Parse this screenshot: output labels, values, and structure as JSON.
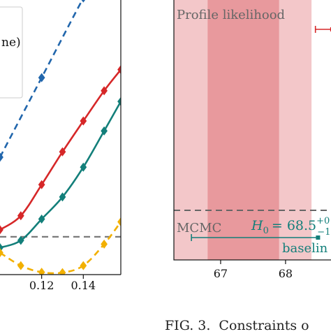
{
  "chart_data": [
    {
      "type": "line",
      "title": "",
      "xlabel": "",
      "ylabel": "",
      "xlim": [
        0.1,
        0.158
      ],
      "ylim": [
        -1.9,
        11.9
      ],
      "x_ticks": [
        {
          "value": 0.12,
          "label": "0.12"
        },
        {
          "value": 0.14,
          "label": "0.14"
        }
      ],
      "legend": {
        "placement": "upper-left (clipped)",
        "visible_text": [
          "ne)"
        ]
      },
      "reference_line": {
        "y": 0.0,
        "style": "dashed",
        "color": "#7a7a7a"
      },
      "series": [
        {
          "color": "#2166ac",
          "style": "dashed",
          "marker": "diamond",
          "x": [
            0.1,
            0.12,
            0.14,
            0.155
          ],
          "y": [
            4.0,
            8.0,
            12.0,
            14.8
          ]
        },
        {
          "color": "#d62728",
          "style": "solid",
          "marker": "diamond",
          "x": [
            0.1,
            0.11,
            0.12,
            0.13,
            0.14,
            0.15,
            0.158
          ],
          "y": [
            0.35,
            1.06,
            2.62,
            4.27,
            5.82,
            7.34,
            8.4
          ]
        },
        {
          "color": "#137f7a",
          "style": "solid",
          "marker": "diamond",
          "x": [
            0.1,
            0.11,
            0.12,
            0.13,
            0.14,
            0.15,
            0.158
          ],
          "y": [
            -0.55,
            -0.18,
            0.89,
            2.0,
            3.5,
            5.32,
            6.8
          ]
        },
        {
          "color": "#f2b000",
          "style": "dashed",
          "marker": "diamond",
          "x": [
            0.1,
            0.11,
            0.12,
            0.13,
            0.14,
            0.15,
            0.158
          ],
          "y": [
            -0.8,
            -1.45,
            -1.78,
            -1.8,
            -1.45,
            -0.37,
            0.75
          ]
        }
      ]
    },
    {
      "type": "scatter",
      "title": "",
      "xlim": [
        66.28,
        68.7
      ],
      "x_ticks": [
        {
          "value": 67,
          "label": "67"
        },
        {
          "value": 68,
          "label": "68"
        }
      ],
      "bands": [
        {
          "from": 66.28,
          "to": 68.4,
          "color": "#f3c7c9"
        },
        {
          "from": 66.8,
          "to": 67.9,
          "color": "#e8999d"
        }
      ],
      "separator_line": {
        "style": "dashed",
        "color": "#666666"
      },
      "sections": {
        "top_label": "Profile likelihood",
        "bottom_label": "MCMC"
      },
      "points": [
        {
          "section": "Profile likelihood",
          "x": 68.72,
          "xerr_low": 68.46,
          "color": "#d62728"
        },
        {
          "section": "MCMC",
          "x": 68.5,
          "xerr_low": 66.55,
          "color": "#137f7a",
          "annotation": "H_0 = 68.5^{+0...}_{-1...}",
          "label": "baselin"
        }
      ],
      "annotation_parts": {
        "symbol": "H",
        "subscript": "0",
        "equals": "= 68.5",
        "sup": "+0",
        "sub": "−1"
      }
    }
  ],
  "caption": {
    "fig_label": "FIG. 3.",
    "text": "Constraints o"
  }
}
